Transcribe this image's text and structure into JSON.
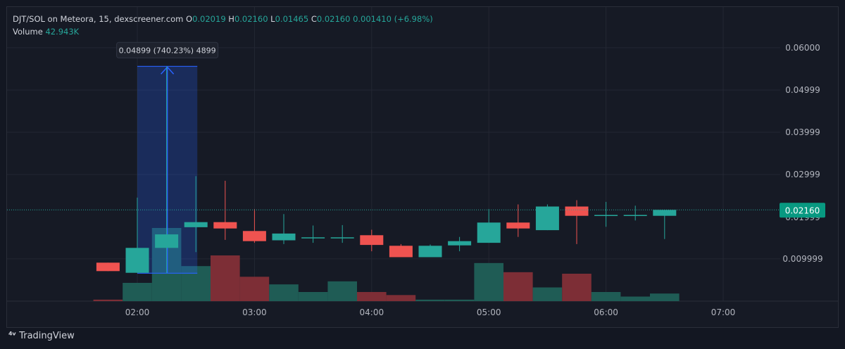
{
  "header": {
    "pair": "DJT/SOL on Meteora, 15, dexscreener.com",
    "o_label": "O",
    "o_value": "0.02019",
    "h_label": "H",
    "h_value": "0.02160",
    "l_label": "L",
    "l_value": "0.01465",
    "c_label": "C",
    "c_value": "0.02160",
    "change": "0.001410 (+6.98%)",
    "volume_label": "Volume",
    "volume_value": "42.943K"
  },
  "watermark": {
    "icon": "tradingview-logo-icon",
    "text": "TradingView"
  },
  "colors": {
    "up": "#26a69a",
    "down": "#ef5350",
    "up_volume": "#1f5c55",
    "down_volume": "#7d2e36",
    "measure": "#2962ff",
    "price_badge": "#089981"
  },
  "chart_data": {
    "type": "candlestick",
    "x_ticks": [
      "02:00",
      "03:00",
      "04:00",
      "05:00",
      "06:00",
      "07:00"
    ],
    "y_ticks": [
      "0.009999",
      "0.02999",
      "0.03999",
      "0.04999",
      "0.06000"
    ],
    "y_tick_values": [
      0.009999,
      0.02999,
      0.03999,
      0.04999,
      0.06
    ],
    "last_price_label": "0.02160",
    "last_price": 0.0216,
    "hidden_tick_label": "0.01999",
    "measure_tooltip": "0.04899 (740.23%) 4899",
    "measure": {
      "from_price": 0.0066,
      "to_price": 0.0556
    },
    "candles": [
      {
        "time": "01:45",
        "o": 0.0091,
        "h": 0.0091,
        "l": 0.0071,
        "c": 0.0071,
        "v": 1
      },
      {
        "time": "02:00",
        "o": 0.0067,
        "h": 0.0245,
        "l": 0.0067,
        "c": 0.0126,
        "v": 12
      },
      {
        "time": "02:15",
        "o": 0.0126,
        "h": 0.0556,
        "l": 0.0066,
        "c": 0.0158,
        "v": 48
      },
      {
        "time": "02:30",
        "o": 0.0175,
        "h": 0.0296,
        "l": 0.0116,
        "c": 0.0187,
        "v": 23
      },
      {
        "time": "02:45",
        "o": 0.0187,
        "h": 0.0285,
        "l": 0.0145,
        "c": 0.0172,
        "v": 30
      },
      {
        "time": "03:00",
        "o": 0.0166,
        "h": 0.0218,
        "l": 0.0138,
        "c": 0.0142,
        "v": 16
      },
      {
        "time": "03:15",
        "o": 0.0144,
        "h": 0.0206,
        "l": 0.0135,
        "c": 0.016,
        "v": 11
      },
      {
        "time": "03:30",
        "o": 0.0151,
        "h": 0.0179,
        "l": 0.0138,
        "c": 0.0151,
        "v": 6
      },
      {
        "time": "03:45",
        "o": 0.0151,
        "h": 0.018,
        "l": 0.0138,
        "c": 0.0151,
        "v": 13
      },
      {
        "time": "04:00",
        "o": 0.0156,
        "h": 0.0169,
        "l": 0.0118,
        "c": 0.0133,
        "v": 6
      },
      {
        "time": "04:15",
        "o": 0.0131,
        "h": 0.0135,
        "l": 0.0104,
        "c": 0.0104,
        "v": 4
      },
      {
        "time": "04:30",
        "o": 0.0104,
        "h": 0.0134,
        "l": 0.0104,
        "c": 0.0131,
        "v": 1
      },
      {
        "time": "04:45",
        "o": 0.0132,
        "h": 0.0152,
        "l": 0.0118,
        "c": 0.0142,
        "v": 1
      },
      {
        "time": "05:00",
        "o": 0.0138,
        "h": 0.0218,
        "l": 0.0138,
        "c": 0.0186,
        "v": 25
      },
      {
        "time": "05:15",
        "o": 0.0186,
        "h": 0.0229,
        "l": 0.0152,
        "c": 0.0172,
        "v": 19
      },
      {
        "time": "05:30",
        "o": 0.0168,
        "h": 0.0229,
        "l": 0.0168,
        "c": 0.0224,
        "v": 9
      },
      {
        "time": "05:45",
        "o": 0.0224,
        "h": 0.0239,
        "l": 0.0135,
        "c": 0.0202,
        "v": 18
      },
      {
        "time": "06:00",
        "o": 0.0204,
        "h": 0.0235,
        "l": 0.0176,
        "c": 0.0204,
        "v": 6
      },
      {
        "time": "06:15",
        "o": 0.0204,
        "h": 0.0226,
        "l": 0.0191,
        "c": 0.0204,
        "v": 3
      },
      {
        "time": "06:30",
        "o": 0.0202,
        "h": 0.0216,
        "l": 0.0147,
        "c": 0.0216,
        "v": 5
      }
    ]
  }
}
